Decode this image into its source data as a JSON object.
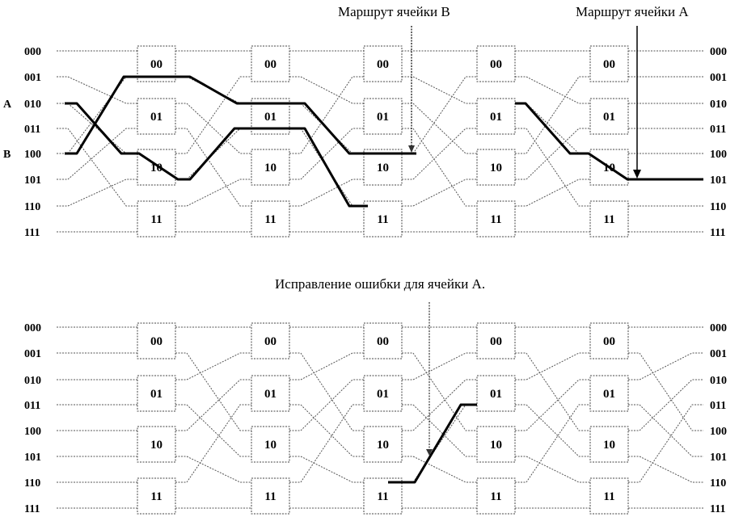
{
  "colors": {
    "wire": "#555555",
    "route": "#000000",
    "box_border": "#444444"
  },
  "node_labels": [
    "000",
    "001",
    "010",
    "011",
    "100",
    "101",
    "110",
    "111"
  ],
  "box_labels": [
    "00",
    "01",
    "10",
    "11"
  ],
  "top": {
    "annotation_b": "Маршрут ячейки В",
    "annotation_a": "Маршрут ячейки А",
    "input_markers": [
      {
        "row": 2,
        "label": "A"
      },
      {
        "row": 4,
        "label": "B"
      }
    ],
    "route_a_rows": "010 → 100 → 101 → 011 → 110 ; 010 → 100 → 101",
    "route_b_rows": "100 → 001 → 010 → 100"
  },
  "bottom": {
    "annotation": "Исправление ошибки для ячейки А."
  }
}
